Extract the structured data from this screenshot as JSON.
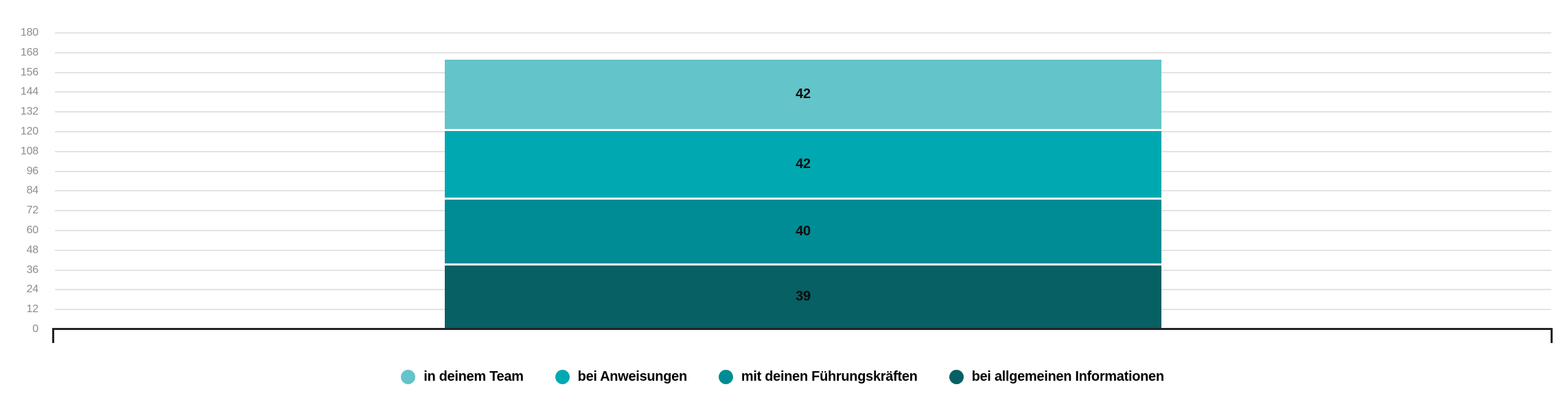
{
  "chart_data": {
    "type": "bar",
    "subtype": "stacked",
    "orientation": "vertical",
    "title": "",
    "xlabel": "",
    "ylabel": "",
    "categories": [
      ""
    ],
    "series": [
      {
        "name": "in deinem Team",
        "color": "#63c4c9",
        "values": [
          42
        ]
      },
      {
        "name": "bei Anweisungen",
        "color": "#00a9b2",
        "values": [
          42
        ]
      },
      {
        "name": "mit deinen Führungskräften",
        "color": "#008c95",
        "values": [
          40
        ]
      },
      {
        "name": "bei allgemeinen Informationen",
        "color": "#076064",
        "values": [
          39
        ]
      }
    ],
    "stack_order": "first-series-on-top",
    "value_labels_shown": true,
    "value_labels_top_to_bottom": [
      42,
      42,
      40,
      39
    ],
    "ylim": [
      0,
      180
    ],
    "y_tick_step": 12,
    "y_ticks": [
      0,
      12,
      24,
      36,
      48,
      60,
      72,
      84,
      96,
      108,
      120,
      132,
      144,
      156,
      168,
      180
    ],
    "grid": true,
    "legend_position": "bottom"
  },
  "style": {
    "grid_color": "#e3e3e3",
    "axis_line_color": "#232329",
    "tick_label_color": "#8d8d8d",
    "value_label_color": "#0d0d0d",
    "background_color": "#ffffff"
  }
}
